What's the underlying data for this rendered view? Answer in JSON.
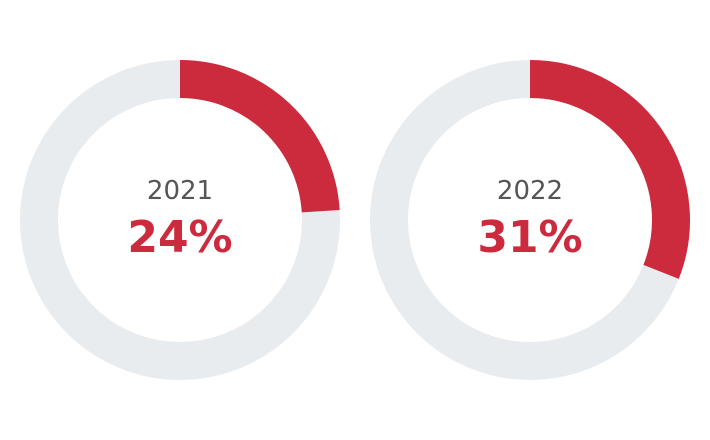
{
  "colors": {
    "accent": "#cc2b3e",
    "track": "#e9ecef",
    "label": "#555555"
  },
  "chart_data": [
    {
      "type": "pie",
      "variant": "donut",
      "title": "",
      "center_label": "2021",
      "value_label": "24%",
      "value": 24,
      "max": 100
    },
    {
      "type": "pie",
      "variant": "donut",
      "title": "",
      "center_label": "2022",
      "value_label": "31%",
      "value": 31,
      "max": 100
    }
  ]
}
